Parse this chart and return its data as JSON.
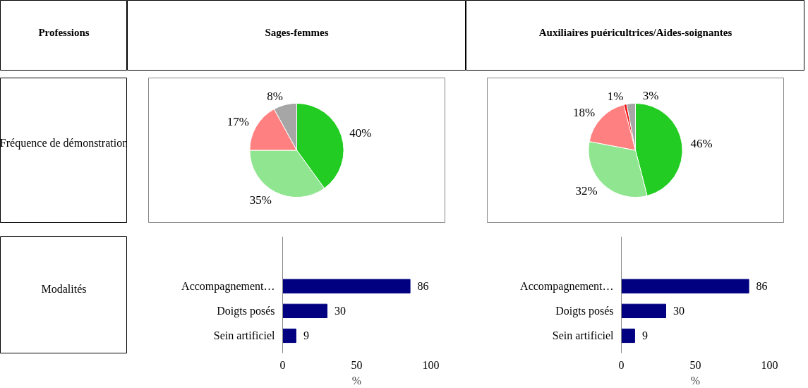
{
  "chart_data": [
    {
      "type": "other",
      "title": "Professions"
    },
    {
      "type": "other",
      "title": "Sages-femmes"
    },
    {
      "type": "other",
      "title": "Auxiliaires puéricultrices/Aides-soignantes"
    },
    {
      "type": "other",
      "title": "Fréquence de démonstration"
    },
    {
      "type": "pie",
      "categories": [
        null,
        null,
        null,
        null
      ],
      "values": [
        40,
        35,
        17,
        8
      ],
      "value_labels": [
        "40%",
        "35%",
        "17%",
        "8%"
      ],
      "colors": [
        "#22cc22",
        "#90e690",
        "#ff8080",
        "#a6a6a6"
      ]
    },
    {
      "type": "pie",
      "categories": [
        null,
        null,
        null,
        null,
        null
      ],
      "values": [
        46,
        32,
        18,
        1,
        3
      ],
      "value_labels": [
        "46%",
        "32%",
        "18%",
        "1%",
        "3%"
      ],
      "colors": [
        "#22cc22",
        "#90e690",
        "#ff8080",
        "#ee1111",
        "#a6a6a6"
      ]
    },
    {
      "type": "other",
      "title": "Modalités"
    },
    {
      "type": "bar",
      "orientation": "horizontal",
      "categories": [
        "Accompagnement…",
        "Doigts posés",
        "Sein artificiel"
      ],
      "values": [
        86,
        30,
        9
      ],
      "color": "#000080",
      "xlim": [
        0,
        100
      ],
      "xticks": [
        0,
        50,
        100
      ],
      "xlabel": "%",
      "data_labels": true,
      "grid": false
    },
    {
      "type": "bar",
      "orientation": "horizontal",
      "categories": [
        "Accompagnement…",
        "Doigts posés",
        "Sein artificiel"
      ],
      "values": [
        86,
        30,
        9
      ],
      "color": "#000080",
      "xlim": [
        0,
        100
      ],
      "xticks": [
        0,
        50,
        100
      ],
      "xlabel": "%",
      "data_labels": true,
      "grid": false
    }
  ]
}
